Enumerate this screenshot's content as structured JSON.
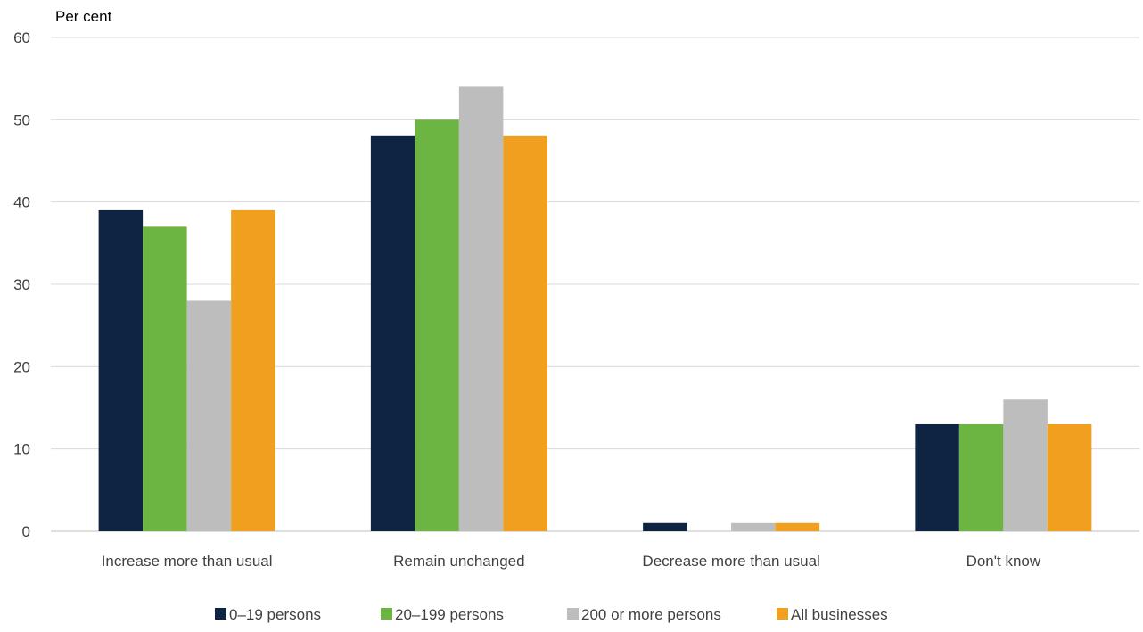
{
  "chart_data": {
    "type": "bar",
    "ylabel": "Per cent",
    "ylim": [
      0,
      60
    ],
    "yticks": [
      0,
      10,
      20,
      30,
      40,
      50,
      60
    ],
    "grid": true,
    "legend_position": "bottom",
    "categories": [
      "Increase more than usual",
      "Remain unchanged",
      "Decrease more than usual",
      "Don't know"
    ],
    "series": [
      {
        "name": "0–19 persons",
        "color": "#0f2342",
        "values": [
          39,
          48,
          1,
          13
        ]
      },
      {
        "name": "20–199 persons",
        "color": "#6db543",
        "values": [
          37,
          50,
          0,
          13
        ]
      },
      {
        "name": "200 or more persons",
        "color": "#bdbdbd",
        "values": [
          28,
          54,
          1,
          16
        ]
      },
      {
        "name": "All businesses",
        "color": "#f0a01e",
        "values": [
          39,
          48,
          1,
          13
        ]
      }
    ]
  }
}
